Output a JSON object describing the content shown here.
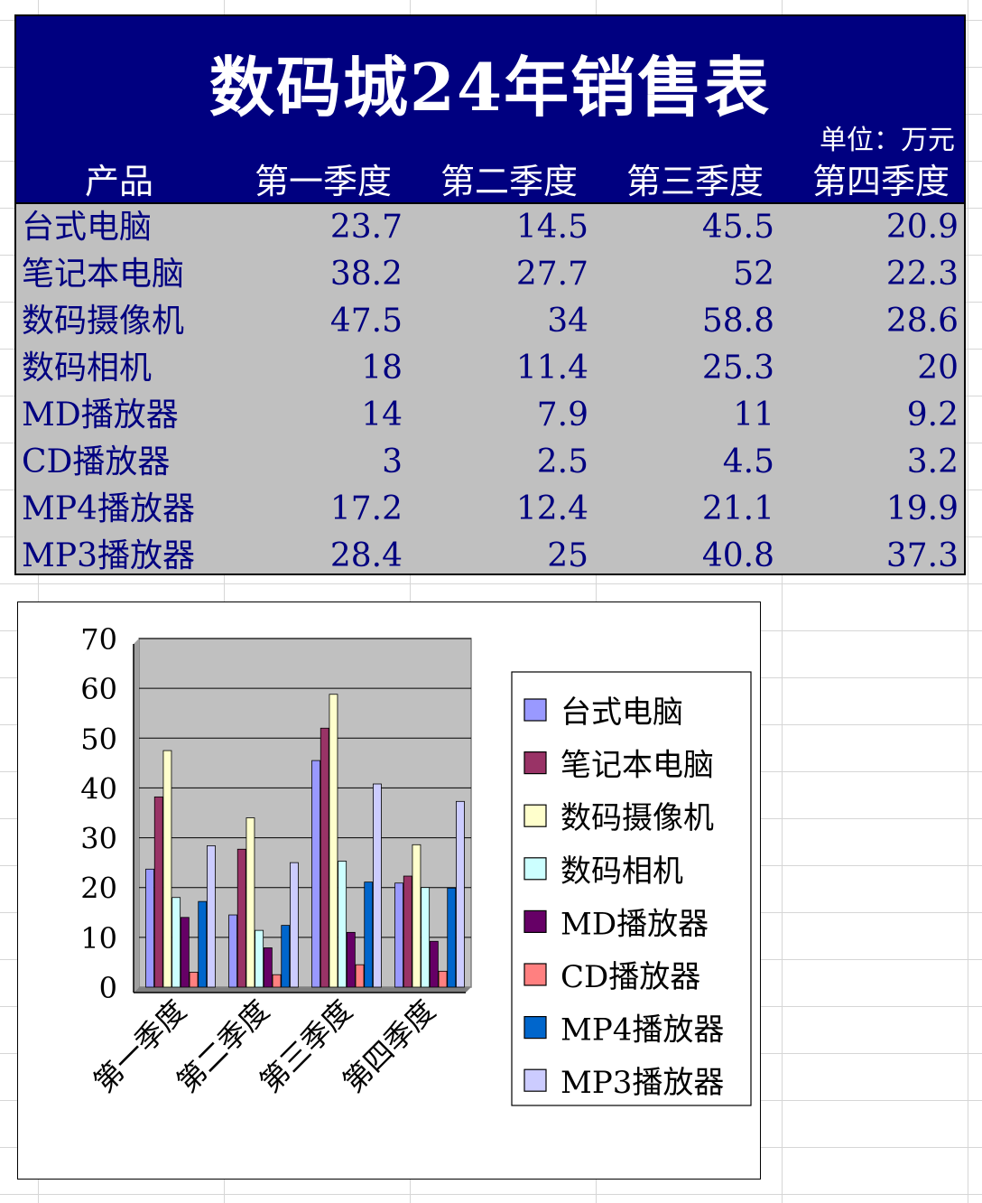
{
  "sheet": {
    "title": "数码城24年销售表",
    "unit": "单位：万元",
    "headers": [
      "产品",
      "第一季度",
      "第二季度",
      "第三季度",
      "第四季度"
    ],
    "rows": [
      {
        "name": "台式电脑",
        "q": [
          "23.7",
          "14.5",
          "45.5",
          "20.9"
        ]
      },
      {
        "name": "笔记本电脑",
        "q": [
          "38.2",
          "27.7",
          "52",
          "22.3"
        ]
      },
      {
        "name": "数码摄像机",
        "q": [
          "47.5",
          "34",
          "58.8",
          "28.6"
        ]
      },
      {
        "name": "数码相机",
        "q": [
          "18",
          "11.4",
          "25.3",
          "20"
        ]
      },
      {
        "name": "MD播放器",
        "q": [
          "14",
          "7.9",
          "11",
          "9.2"
        ]
      },
      {
        "name": "CD播放器",
        "q": [
          "3",
          "2.5",
          "4.5",
          "3.2"
        ]
      },
      {
        "name": "MP4播放器",
        "q": [
          "17.2",
          "12.4",
          "21.1",
          "19.9"
        ]
      },
      {
        "name": "MP3播放器",
        "q": [
          "28.4",
          "25",
          "40.8",
          "37.3"
        ]
      }
    ]
  },
  "chart_data": {
    "type": "bar",
    "title": "",
    "xlabel": "",
    "ylabel": "",
    "ylim": [
      0,
      70
    ],
    "yticks": [
      0,
      10,
      20,
      30,
      40,
      50,
      60,
      70
    ],
    "grid": true,
    "legend_position": "right",
    "plot_background": "#c0c0c0",
    "categories": [
      "第一季度",
      "第二季度",
      "第三季度",
      "第四季度"
    ],
    "series": [
      {
        "name": "台式电脑",
        "color": "#9999ff",
        "values": [
          23.7,
          14.5,
          45.5,
          20.9
        ]
      },
      {
        "name": "笔记本电脑",
        "color": "#993366",
        "values": [
          38.2,
          27.7,
          52,
          22.3
        ]
      },
      {
        "name": "数码摄像机",
        "color": "#ffffcc",
        "values": [
          47.5,
          34,
          58.8,
          28.6
        ]
      },
      {
        "name": "数码相机",
        "color": "#ccffff",
        "values": [
          18,
          11.4,
          25.3,
          20
        ]
      },
      {
        "name": "MD播放器",
        "color": "#660066",
        "values": [
          14,
          7.9,
          11,
          9.2
        ]
      },
      {
        "name": "CD播放器",
        "color": "#ff8080",
        "values": [
          3,
          2.5,
          4.5,
          3.2
        ]
      },
      {
        "name": "MP4播放器",
        "color": "#0066cc",
        "values": [
          17.2,
          12.4,
          21.1,
          19.9
        ]
      },
      {
        "name": "MP3播放器",
        "color": "#ccccff",
        "values": [
          28.4,
          25,
          40.8,
          37.3
        ]
      }
    ]
  }
}
